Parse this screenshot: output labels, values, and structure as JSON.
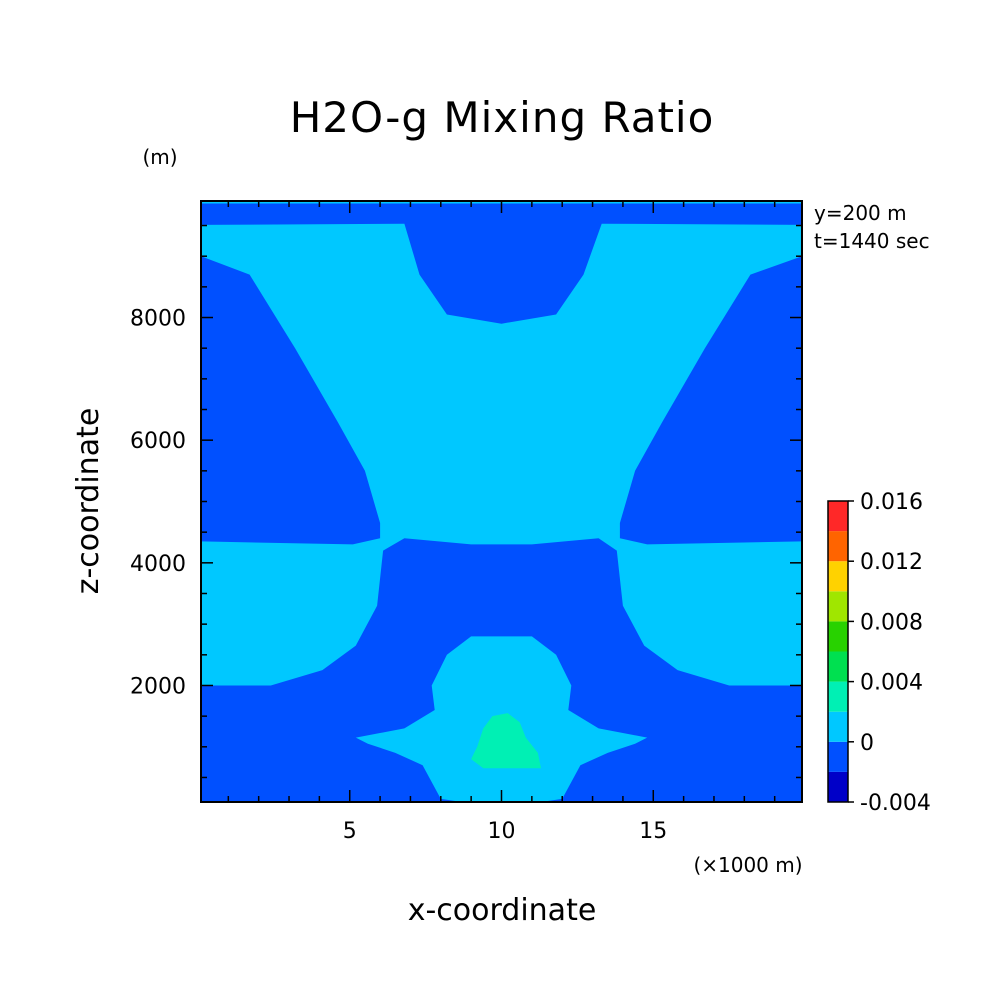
{
  "chart_data": {
    "type": "heatmap",
    "title": "H2O-g Mixing Ratio",
    "xlabel": "x-coordinate",
    "ylabel": "z-coordinate",
    "x_unit": "(×1000 m)",
    "y_unit": "(m)",
    "annotations": [
      "y=200 m",
      "t=1440 sec"
    ],
    "xlim": [
      0.1,
      19.9
    ],
    "ylim": [
      100,
      9900
    ],
    "x_ticks": [
      5,
      10,
      15
    ],
    "y_ticks": [
      2000,
      4000,
      6000,
      8000
    ],
    "colorbar": {
      "levels": [
        -0.004,
        -0.002,
        0,
        0.002,
        0.004,
        0.006,
        0.008,
        0.01,
        0.012,
        0.014,
        0.016
      ],
      "tick_labels": [
        "-0.004",
        "0",
        "0.004",
        "0.008",
        "0.012",
        "0.016"
      ],
      "tick_values": [
        -0.004,
        0,
        0.004,
        0.008,
        0.012,
        0.016
      ],
      "colors": [
        "#0000c8",
        "#0050ff",
        "#00c8ff",
        "#00f0b4",
        "#00e050",
        "#28d200",
        "#a0e600",
        "#ffd200",
        "#ff6400",
        "#ff2828"
      ]
    },
    "regions": [
      {
        "level_band": "-0.002 to 0",
        "color": "#0050ff",
        "description": "background"
      },
      {
        "level_band": "0 to 0.002",
        "color": "#00c8ff",
        "polygon": [
          [
            0.1,
            9510
          ],
          [
            6.8,
            9530
          ],
          [
            7.3,
            8700
          ],
          [
            8.2,
            8050
          ],
          [
            10,
            7900
          ],
          [
            11.8,
            8050
          ],
          [
            12.7,
            8700
          ],
          [
            13.3,
            9530
          ],
          [
            19.9,
            9510
          ],
          [
            19.9,
            9000
          ],
          [
            18.2,
            8700
          ],
          [
            16.7,
            7500
          ],
          [
            15.3,
            6300
          ],
          [
            14.4,
            5500
          ],
          [
            13.9,
            4650
          ],
          [
            13.9,
            4400
          ],
          [
            14.8,
            4300
          ],
          [
            19.9,
            4350
          ],
          [
            19.9,
            2000
          ],
          [
            17.5,
            2000
          ],
          [
            15.8,
            2250
          ],
          [
            14.7,
            2650
          ],
          [
            14,
            3300
          ],
          [
            13.8,
            4200
          ],
          [
            13.2,
            4400
          ],
          [
            11,
            4300
          ],
          [
            9,
            4300
          ],
          [
            6.8,
            4400
          ],
          [
            6.1,
            4200
          ],
          [
            5.9,
            3300
          ],
          [
            5.2,
            2650
          ],
          [
            4.1,
            2250
          ],
          [
            2.4,
            2000
          ],
          [
            0.1,
            2000
          ],
          [
            0.1,
            4350
          ],
          [
            5.1,
            4300
          ],
          [
            6,
            4400
          ],
          [
            6,
            4650
          ],
          [
            5.5,
            5500
          ],
          [
            4.6,
            6300
          ],
          [
            3.2,
            7500
          ],
          [
            1.7,
            8700
          ],
          [
            0.1,
            9000
          ]
        ]
      },
      {
        "level_band": "0 to 0.002",
        "color": "#00c8ff",
        "polygon": [
          [
            9,
            2800
          ],
          [
            11,
            2800
          ],
          [
            11.8,
            2500
          ],
          [
            12.3,
            2000
          ],
          [
            12.2,
            1600
          ],
          [
            13.2,
            1300
          ],
          [
            14.8,
            1150
          ],
          [
            14.4,
            1050
          ],
          [
            13.5,
            900
          ],
          [
            12.6,
            700
          ],
          [
            12,
            150
          ],
          [
            11.3,
            100
          ],
          [
            8.7,
            100
          ],
          [
            8,
            150
          ],
          [
            7.4,
            700
          ],
          [
            6.5,
            900
          ],
          [
            5.6,
            1050
          ],
          [
            5.2,
            1150
          ],
          [
            6.8,
            1300
          ],
          [
            7.8,
            1600
          ],
          [
            7.7,
            2000
          ],
          [
            8.2,
            2500
          ]
        ]
      },
      {
        "level_band": "0.002 to 0.004",
        "color": "#00f0b4",
        "polygon": [
          [
            9.4,
            650
          ],
          [
            11.3,
            650
          ],
          [
            11.2,
            900
          ],
          [
            10.8,
            1150
          ],
          [
            10.6,
            1400
          ],
          [
            10.2,
            1550
          ],
          [
            9.7,
            1500
          ],
          [
            9.4,
            1300
          ],
          [
            9.2,
            1000
          ],
          [
            9,
            800
          ]
        ]
      },
      {
        "level_band": "0 to 0.002",
        "color": "#00c8ff",
        "description": "thin layer at top",
        "polygon": [
          [
            0.1,
            9900
          ],
          [
            19.9,
            9900
          ],
          [
            19.9,
            9860
          ],
          [
            0.1,
            9860
          ]
        ]
      }
    ]
  }
}
